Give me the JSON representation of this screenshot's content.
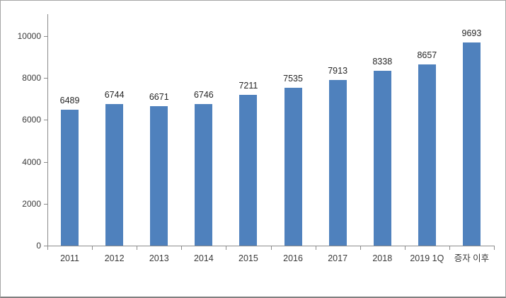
{
  "chart_data": {
    "type": "bar",
    "categories": [
      "2011",
      "2012",
      "2013",
      "2014",
      "2015",
      "2016",
      "2017",
      "2018",
      "2019 1Q",
      "증자 이후"
    ],
    "values": [
      6489,
      6744,
      6671,
      6746,
      7211,
      7535,
      7913,
      8338,
      8657,
      9693
    ],
    "title": "",
    "xlabel": "",
    "ylabel": "",
    "ylim": [
      0,
      10000
    ],
    "yticks": [
      0,
      2000,
      4000,
      6000,
      8000,
      10000
    ],
    "grid": false,
    "legend": "none",
    "data_labels": true,
    "colors": {
      "bar": "#4f81bd",
      "axis": "#8c8c8c",
      "tick_label": "#3a3a3a",
      "data_label": "#262626",
      "background": "#ffffff",
      "frame_border": "#a6a6a6"
    }
  }
}
